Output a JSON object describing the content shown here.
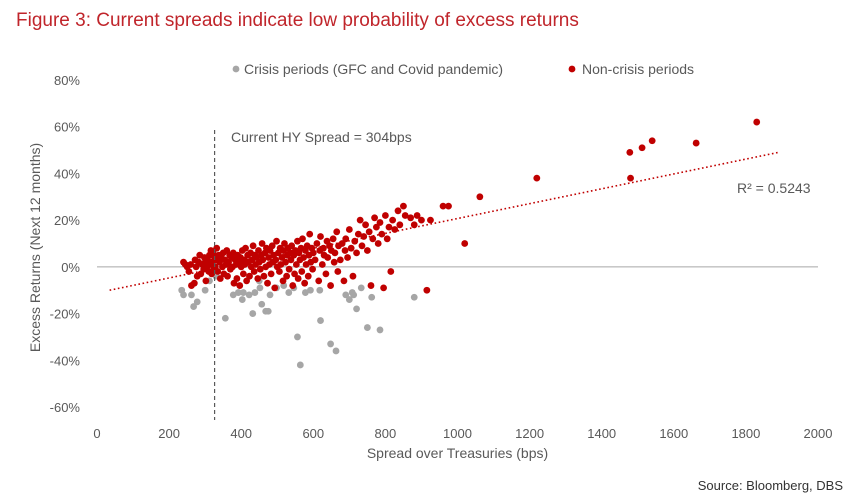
{
  "title": "Figure 3: Current spreads indicate low probability of excess returns",
  "source": "Source: Bloomberg, DBS",
  "colors": {
    "crisis": "#a6a6a6",
    "non_crisis": "#c00000",
    "title": "#c0252b",
    "axis": "#595959"
  },
  "chart_data": {
    "type": "scatter",
    "xlabel": "Spread over Treasuries (bps)",
    "ylabel": "Excess Returns (Next 12 months)",
    "xlim": [
      0,
      2000
    ],
    "ylim": [
      -60,
      80
    ],
    "x_ticks": [
      0,
      200,
      400,
      600,
      800,
      1000,
      1200,
      1400,
      1600,
      1800,
      2000
    ],
    "y_ticks": [
      -60,
      -40,
      -20,
      0,
      20,
      40,
      60,
      80
    ],
    "y_tick_labels": [
      "-60%",
      "-40%",
      "-20%",
      "0%",
      "20%",
      "40%",
      "60%",
      "80%"
    ],
    "grid": false,
    "legend_position": "top",
    "series": [
      {
        "name": "Crisis periods (GFC and Covid pandemic)",
        "points": [
          [
            235,
            -10
          ],
          [
            240,
            -12
          ],
          [
            262,
            -12
          ],
          [
            268,
            -17
          ],
          [
            278,
            -15
          ],
          [
            300,
            -10
          ],
          [
            312,
            -6
          ],
          [
            330,
            -4
          ],
          [
            356,
            -22
          ],
          [
            378,
            -12
          ],
          [
            392,
            -11
          ],
          [
            403,
            -14
          ],
          [
            406,
            -11
          ],
          [
            422,
            -12
          ],
          [
            432,
            -20
          ],
          [
            438,
            -11
          ],
          [
            450,
            -6
          ],
          [
            452,
            -9
          ],
          [
            457,
            -16
          ],
          [
            468,
            -19
          ],
          [
            475,
            -19
          ],
          [
            480,
            -12
          ],
          [
            498,
            -9
          ],
          [
            518,
            -8
          ],
          [
            532,
            -11
          ],
          [
            546,
            -9
          ],
          [
            556,
            -30
          ],
          [
            564,
            -42
          ],
          [
            578,
            -11
          ],
          [
            592,
            -10
          ],
          [
            620,
            -23
          ],
          [
            618,
            -10
          ],
          [
            648,
            -33
          ],
          [
            663,
            -36
          ],
          [
            690,
            -12
          ],
          [
            700,
            -14
          ],
          [
            708,
            -11
          ],
          [
            712,
            -12
          ],
          [
            720,
            -18
          ],
          [
            733,
            -9
          ],
          [
            750,
            -26
          ],
          [
            762,
            -13
          ],
          [
            785,
            -27
          ],
          [
            880,
            -13
          ]
        ]
      },
      {
        "name": "Non-crisis periods",
        "points": [
          [
            240,
            2
          ],
          [
            245,
            1
          ],
          [
            250,
            0
          ],
          [
            255,
            -2
          ],
          [
            260,
            1
          ],
          [
            262,
            -8
          ],
          [
            270,
            -7
          ],
          [
            272,
            3
          ],
          [
            275,
            0
          ],
          [
            278,
            -4
          ],
          [
            282,
            2
          ],
          [
            285,
            5
          ],
          [
            288,
            -3
          ],
          [
            292,
            1
          ],
          [
            296,
            -1
          ],
          [
            298,
            4
          ],
          [
            300,
            2
          ],
          [
            302,
            -6
          ],
          [
            305,
            0
          ],
          [
            307,
            3
          ],
          [
            310,
            -2
          ],
          [
            312,
            5
          ],
          [
            314,
            1
          ],
          [
            316,
            7
          ],
          [
            318,
            -3
          ],
          [
            320,
            2
          ],
          [
            322,
            6
          ],
          [
            324,
            -1
          ],
          [
            326,
            4
          ],
          [
            328,
            0
          ],
          [
            330,
            3
          ],
          [
            332,
            8
          ],
          [
            335,
            -2
          ],
          [
            338,
            5
          ],
          [
            340,
            2
          ],
          [
            342,
            -5
          ],
          [
            345,
            4
          ],
          [
            348,
            0
          ],
          [
            350,
            6
          ],
          [
            352,
            -3
          ],
          [
            355,
            3
          ],
          [
            358,
            1
          ],
          [
            360,
            7
          ],
          [
            362,
            -4
          ],
          [
            365,
            2
          ],
          [
            368,
            5
          ],
          [
            370,
            -1
          ],
          [
            373,
            4
          ],
          [
            376,
            0
          ],
          [
            378,
            6
          ],
          [
            380,
            -7
          ],
          [
            383,
            3
          ],
          [
            386,
            1
          ],
          [
            388,
            -5
          ],
          [
            390,
            5
          ],
          [
            393,
            2
          ],
          [
            396,
            -8
          ],
          [
            398,
            4
          ],
          [
            400,
            0
          ],
          [
            403,
            7
          ],
          [
            406,
            -3
          ],
          [
            408,
            3
          ],
          [
            410,
            1
          ],
          [
            412,
            8
          ],
          [
            415,
            -6
          ],
          [
            418,
            5
          ],
          [
            420,
            2
          ],
          [
            423,
            -4
          ],
          [
            426,
            6
          ],
          [
            428,
            0
          ],
          [
            430,
            3
          ],
          [
            433,
            9
          ],
          [
            436,
            -2
          ],
          [
            438,
            5
          ],
          [
            440,
            1
          ],
          [
            443,
            4
          ],
          [
            446,
            -5
          ],
          [
            448,
            7
          ],
          [
            450,
            2
          ],
          [
            453,
            -1
          ],
          [
            456,
            5
          ],
          [
            458,
            10
          ],
          [
            460,
            3
          ],
          [
            463,
            -4
          ],
          [
            466,
            6
          ],
          [
            468,
            0
          ],
          [
            470,
            8
          ],
          [
            473,
            -7
          ],
          [
            476,
            4
          ],
          [
            478,
            1
          ],
          [
            480,
            7
          ],
          [
            483,
            -3
          ],
          [
            486,
            9
          ],
          [
            488,
            2
          ],
          [
            490,
            5
          ],
          [
            493,
            -9
          ],
          [
            496,
            3
          ],
          [
            498,
            11
          ],
          [
            500,
            0
          ],
          [
            503,
            6
          ],
          [
            506,
            -2
          ],
          [
            508,
            8
          ],
          [
            510,
            1
          ],
          [
            513,
            4
          ],
          [
            516,
            -6
          ],
          [
            518,
            7
          ],
          [
            520,
            10
          ],
          [
            523,
            2
          ],
          [
            526,
            -4
          ],
          [
            528,
            5
          ],
          [
            530,
            8
          ],
          [
            533,
            -1
          ],
          [
            536,
            6
          ],
          [
            538,
            3
          ],
          [
            540,
            9
          ],
          [
            543,
            -8
          ],
          [
            546,
            5
          ],
          [
            548,
            -3
          ],
          [
            550,
            7
          ],
          [
            553,
            1
          ],
          [
            556,
            11
          ],
          [
            558,
            -5
          ],
          [
            560,
            6
          ],
          [
            563,
            3
          ],
          [
            566,
            8
          ],
          [
            568,
            -2
          ],
          [
            570,
            12
          ],
          [
            573,
            4
          ],
          [
            576,
            -7
          ],
          [
            578,
            7
          ],
          [
            580,
            1
          ],
          [
            583,
            9
          ],
          [
            586,
            -4
          ],
          [
            588,
            5
          ],
          [
            590,
            14
          ],
          [
            593,
            2
          ],
          [
            596,
            8
          ],
          [
            598,
            -1
          ],
          [
            600,
            6
          ],
          [
            605,
            3
          ],
          [
            610,
            10
          ],
          [
            615,
            -6
          ],
          [
            618,
            7
          ],
          [
            620,
            13
          ],
          [
            625,
            1
          ],
          [
            628,
            8
          ],
          [
            630,
            5
          ],
          [
            635,
            -3
          ],
          [
            638,
            11
          ],
          [
            640,
            4
          ],
          [
            645,
            9
          ],
          [
            648,
            -8
          ],
          [
            650,
            7
          ],
          [
            655,
            12
          ],
          [
            658,
            2
          ],
          [
            660,
            6
          ],
          [
            665,
            15
          ],
          [
            668,
            -2
          ],
          [
            670,
            9
          ],
          [
            675,
            3
          ],
          [
            680,
            10
          ],
          [
            685,
            -6
          ],
          [
            688,
            7
          ],
          [
            690,
            12
          ],
          [
            695,
            4
          ],
          [
            700,
            16
          ],
          [
            705,
            8
          ],
          [
            710,
            -4
          ],
          [
            715,
            11
          ],
          [
            720,
            6
          ],
          [
            725,
            14
          ],
          [
            730,
            20
          ],
          [
            735,
            9
          ],
          [
            740,
            13
          ],
          [
            745,
            18
          ],
          [
            750,
            7
          ],
          [
            755,
            15
          ],
          [
            760,
            -8
          ],
          [
            765,
            12
          ],
          [
            770,
            21
          ],
          [
            775,
            17
          ],
          [
            780,
            10
          ],
          [
            785,
            19
          ],
          [
            790,
            14
          ],
          [
            795,
            -9
          ],
          [
            800,
            22
          ],
          [
            805,
            12
          ],
          [
            810,
            17
          ],
          [
            815,
            -2
          ],
          [
            820,
            20
          ],
          [
            826,
            16
          ],
          [
            835,
            24
          ],
          [
            840,
            18
          ],
          [
            850,
            26
          ],
          [
            855,
            22
          ],
          [
            870,
            21
          ],
          [
            880,
            18
          ],
          [
            888,
            22
          ],
          [
            900,
            20
          ],
          [
            915,
            -10
          ],
          [
            925,
            20
          ],
          [
            960,
            26
          ],
          [
            975,
            26
          ],
          [
            1020,
            10
          ],
          [
            1062,
            30
          ],
          [
            1220,
            38
          ],
          [
            1480,
            38
          ],
          [
            1478,
            49
          ],
          [
            1512,
            51
          ],
          [
            1540,
            54
          ],
          [
            1662,
            53
          ],
          [
            1830,
            62
          ]
        ]
      }
    ],
    "trendline": {
      "style": "dotted",
      "from": [
        35,
        -10
      ],
      "to": [
        1890,
        49
      ]
    },
    "annotations": [
      {
        "text": "Current HY Spread = 304bps",
        "x": 304,
        "style": "dashed-vertical-line"
      },
      {
        "text": "R² = 0.5243"
      }
    ]
  }
}
